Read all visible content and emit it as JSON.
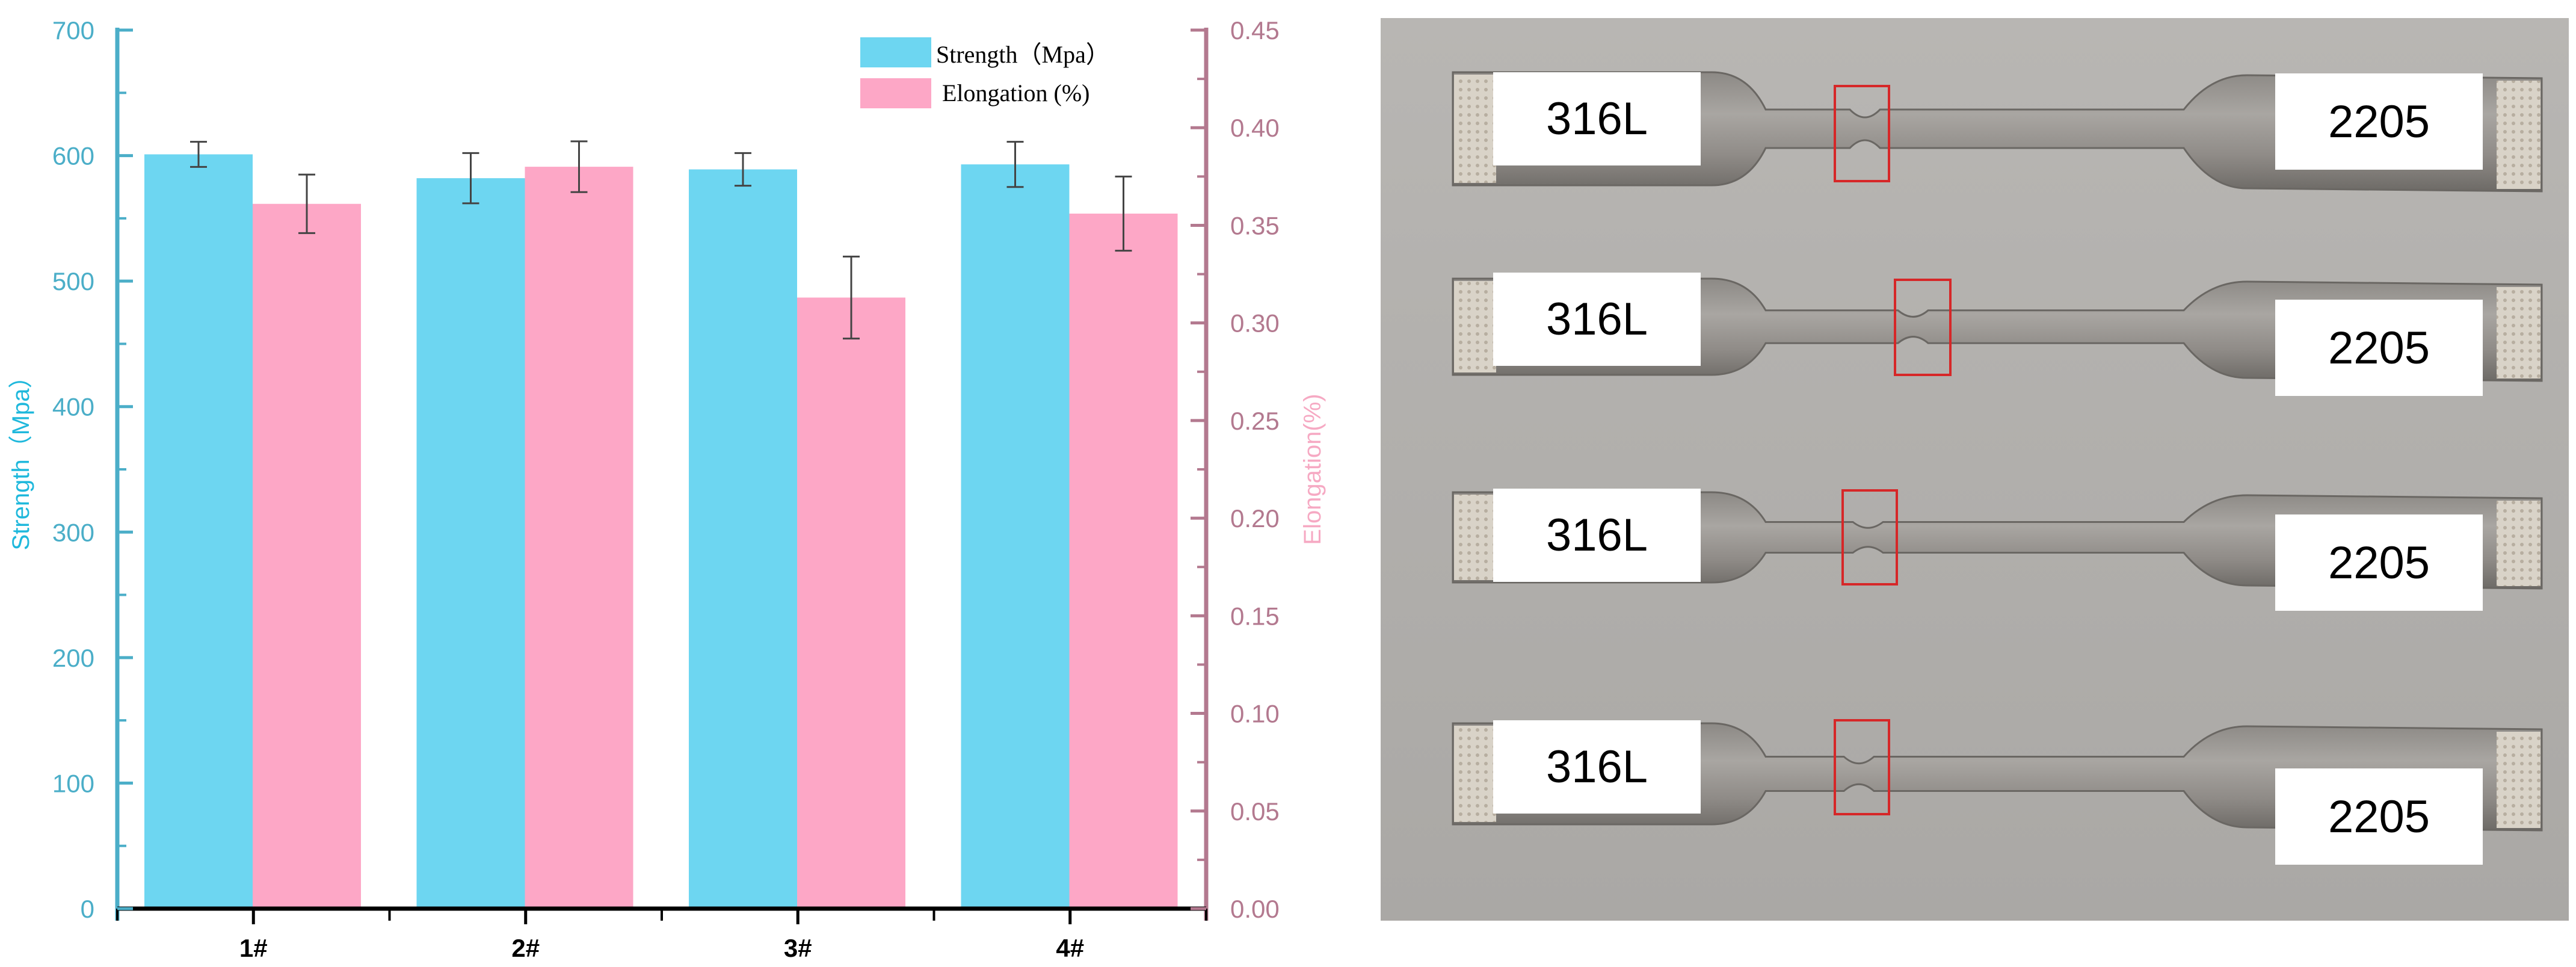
{
  "chart_data": {
    "type": "bar",
    "categories": [
      "1#",
      "2#",
      "3#",
      "4#"
    ],
    "series": [
      {
        "name": "Strength（Mpa）",
        "axis": "left",
        "color": "#6dd6f1",
        "values": [
          601,
          582,
          589,
          593
        ],
        "errors": [
          10,
          20,
          13,
          18
        ]
      },
      {
        "name": "Elongation (%)",
        "axis": "right",
        "color": "#fda7c6",
        "values": [
          0.361,
          0.38,
          0.313,
          0.356
        ],
        "errors": [
          0.015,
          0.013,
          0.021,
          0.019
        ]
      }
    ],
    "ylabel": "Strength（Mpa）",
    "y2label": "Elongation(%)",
    "ylim": [
      0,
      700
    ],
    "y2lim": [
      0,
      0.45
    ],
    "yticks": [
      "0",
      "100",
      "200",
      "300",
      "400",
      "500",
      "600",
      "700"
    ],
    "y2ticks": [
      "0.00",
      "0.05",
      "0.10",
      "0.15",
      "0.20",
      "0.25",
      "0.30",
      "0.35",
      "0.40",
      "0.45"
    ],
    "legend_position": "top-right",
    "left_axis_color": "#4baec8",
    "right_axis_color": "#b3798f",
    "grid": false
  },
  "photo": {
    "specimens": [
      {
        "left_label": "316L",
        "right_label": "2205"
      },
      {
        "left_label": "316L",
        "right_label": "2205"
      },
      {
        "left_label": "316L",
        "right_label": "2205"
      },
      {
        "left_label": "316L",
        "right_label": "2205"
      }
    ],
    "highlight_color": "#d62728"
  }
}
